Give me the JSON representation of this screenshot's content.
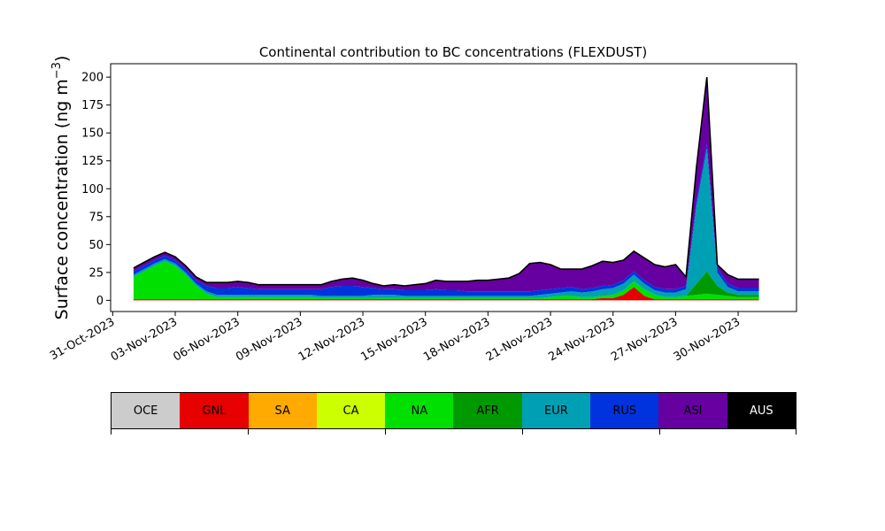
{
  "chart_data": {
    "type": "area",
    "title": "Continental contribution to BC concentrations (FLEXDUST)",
    "ylabel_main": "Surface concentration (ng m",
    "ylabel_exp": "−3",
    "ylabel_close": ")",
    "xlabel": "",
    "ylim": [
      -10,
      212
    ],
    "xlim_days": [
      -1.1,
      31.8
    ],
    "yticks": [
      0,
      25,
      50,
      75,
      100,
      125,
      150,
      175,
      200
    ],
    "xticks": [
      "31-Oct-2023",
      "03-Nov-2023",
      "06-Nov-2023",
      "09-Nov-2023",
      "12-Nov-2023",
      "15-Nov-2023",
      "18-Nov-2023",
      "21-Nov-2023",
      "24-Nov-2023",
      "27-Nov-2023",
      "30-Nov-2023"
    ],
    "x": [
      "2023-11-01",
      "2023-11-01T12",
      "2023-11-02",
      "2023-11-02T12",
      "2023-11-03",
      "2023-11-03T12",
      "2023-11-04",
      "2023-11-04T12",
      "2023-11-05",
      "2023-11-05T12",
      "2023-11-06",
      "2023-11-06T12",
      "2023-11-07",
      "2023-11-07T12",
      "2023-11-08",
      "2023-11-08T12",
      "2023-11-09",
      "2023-11-09T12",
      "2023-11-10",
      "2023-11-10T12",
      "2023-11-11",
      "2023-11-11T12",
      "2023-11-12",
      "2023-11-12T12",
      "2023-11-13",
      "2023-11-13T12",
      "2023-11-14",
      "2023-11-14T12",
      "2023-11-15",
      "2023-11-15T12",
      "2023-11-16",
      "2023-11-16T12",
      "2023-11-17",
      "2023-11-17T12",
      "2023-11-18",
      "2023-11-18T12",
      "2023-11-19",
      "2023-11-19T12",
      "2023-11-20",
      "2023-11-20T12",
      "2023-11-21",
      "2023-11-21T12",
      "2023-11-22",
      "2023-11-22T12",
      "2023-11-23",
      "2023-11-23T12",
      "2023-11-24",
      "2023-11-24T12",
      "2023-11-25",
      "2023-11-25T12",
      "2023-11-26",
      "2023-11-26T12",
      "2023-11-27",
      "2023-11-27T12",
      "2023-11-28",
      "2023-11-28T12",
      "2023-11-29",
      "2023-11-29T12",
      "2023-11-30",
      "2023-11-30T12",
      "2023-12-01"
    ],
    "series": [
      {
        "name": "OCE",
        "color": "#cccccc",
        "values": [
          0,
          0,
          0,
          0,
          0,
          0,
          0,
          0,
          0,
          0,
          0,
          0,
          0,
          0,
          0,
          0,
          0,
          0,
          0,
          0,
          0,
          0,
          0,
          0,
          0,
          0,
          0,
          0,
          0,
          0,
          0,
          0,
          0,
          0,
          0,
          0,
          0,
          0,
          0,
          0,
          0,
          0,
          0,
          0,
          0,
          0,
          0,
          0,
          0,
          0,
          0,
          0,
          0,
          0,
          0,
          0,
          0,
          0,
          0,
          0,
          0
        ]
      },
      {
        "name": "GNL",
        "color": "#e60000",
        "values": [
          1,
          1,
          1,
          1,
          1,
          1,
          1,
          1,
          1,
          1,
          1,
          1,
          1,
          1,
          1,
          1,
          1,
          1,
          1,
          1,
          1,
          1,
          1,
          1,
          1,
          1,
          1,
          1,
          1,
          1,
          1,
          1,
          1,
          1,
          1,
          1,
          1,
          1,
          1,
          1,
          1,
          1,
          1,
          1,
          1,
          2,
          2,
          5,
          12,
          4,
          1,
          1,
          1,
          1,
          1,
          1,
          1,
          1,
          1,
          1,
          1
        ]
      },
      {
        "name": "SA",
        "color": "#ffaa00",
        "values": [
          0,
          0,
          0,
          0,
          0,
          0,
          0,
          0,
          0,
          0,
          0,
          0,
          0,
          0,
          0,
          0,
          0,
          0,
          0,
          0,
          0,
          0,
          0,
          0,
          0,
          0,
          0,
          0,
          0,
          0,
          0,
          0,
          0,
          0,
          0,
          0,
          0,
          0,
          0,
          0,
          0,
          0,
          0,
          0,
          0,
          0,
          0,
          0,
          0,
          0,
          0,
          0,
          0,
          0,
          0,
          0,
          0,
          0,
          0,
          0,
          0
        ]
      },
      {
        "name": "CA",
        "color": "#ccff00",
        "values": [
          0,
          0,
          0,
          0,
          0,
          0,
          0,
          0,
          0,
          0,
          0,
          0,
          0,
          0,
          0,
          0,
          0,
          0,
          0,
          0,
          0,
          0,
          0,
          0,
          0,
          0,
          0,
          0,
          0,
          0,
          0,
          0,
          0,
          0,
          0,
          0,
          0,
          0,
          0,
          0,
          0,
          0,
          0,
          0,
          0,
          0,
          0,
          0,
          0,
          0,
          0,
          0,
          0,
          0,
          0,
          0,
          0,
          0,
          0,
          0,
          0
        ]
      },
      {
        "name": "NA",
        "color": "#00e000",
        "values": [
          20,
          25,
          30,
          34,
          30,
          22,
          12,
          5,
          2,
          2,
          2,
          2,
          2,
          2,
          2,
          2,
          2,
          2,
          1,
          1,
          1,
          1,
          1,
          1,
          1,
          1,
          1,
          1,
          1,
          1,
          1,
          1,
          1,
          1,
          1,
          1,
          1,
          1,
          1,
          1,
          2,
          3,
          3,
          2,
          2,
          2,
          3,
          4,
          5,
          6,
          4,
          2,
          2,
          3,
          4,
          5,
          4,
          3,
          2,
          2,
          2
        ]
      },
      {
        "name": "AFR",
        "color": "#009900",
        "values": [
          0,
          0,
          0,
          0,
          0,
          0,
          0,
          0,
          0,
          0,
          0,
          0,
          0,
          0,
          0,
          0,
          0,
          0,
          0,
          0,
          0,
          0,
          0,
          0,
          0,
          0,
          0,
          0,
          0,
          0,
          0,
          0,
          0,
          0,
          0,
          0,
          0,
          0,
          0,
          0,
          0,
          0,
          0,
          0,
          0,
          0,
          0,
          0,
          0,
          0,
          0,
          0,
          0,
          0,
          10,
          20,
          8,
          3,
          2,
          2,
          2
        ]
      },
      {
        "name": "EUR",
        "color": "#00a0b4",
        "values": [
          2,
          2,
          2,
          2,
          2,
          2,
          2,
          2,
          2,
          2,
          2,
          2,
          2,
          2,
          2,
          2,
          2,
          2,
          2,
          2,
          2,
          2,
          2,
          3,
          3,
          3,
          2,
          2,
          2,
          2,
          2,
          2,
          2,
          2,
          2,
          2,
          2,
          2,
          2,
          3,
          3,
          3,
          4,
          4,
          5,
          6,
          6,
          6,
          6,
          5,
          4,
          4,
          4,
          6,
          70,
          110,
          12,
          5,
          3,
          3,
          3
        ]
      },
      {
        "name": "RUS",
        "color": "#0033dd",
        "values": [
          3,
          3,
          3,
          3,
          3,
          3,
          3,
          5,
          6,
          6,
          7,
          6,
          5,
          5,
          5,
          5,
          5,
          5,
          6,
          8,
          9,
          9,
          8,
          6,
          5,
          5,
          5,
          5,
          5,
          6,
          5,
          5,
          4,
          4,
          4,
          4,
          4,
          4,
          4,
          4,
          4,
          4,
          4,
          3,
          3,
          3,
          3,
          3,
          3,
          3,
          3,
          3,
          3,
          3,
          4,
          4,
          4,
          3,
          3,
          3,
          3
        ]
      },
      {
        "name": "ASI",
        "color": "#6600a0",
        "values": [
          3,
          3,
          3,
          3,
          3,
          3,
          3,
          3,
          5,
          5,
          5,
          5,
          4,
          4,
          4,
          4,
          4,
          4,
          4,
          5,
          6,
          7,
          6,
          4,
          3,
          4,
          4,
          5,
          6,
          8,
          8,
          8,
          9,
          10,
          10,
          11,
          12,
          16,
          25,
          25,
          22,
          17,
          16,
          18,
          20,
          22,
          20,
          18,
          18,
          20,
          20,
          20,
          22,
          8,
          30,
          60,
          3,
          8,
          8,
          8,
          8
        ]
      },
      {
        "name": "AUS",
        "color": "#000000",
        "values": [
          0,
          0,
          0,
          0,
          0,
          0,
          0,
          0,
          0,
          0,
          0,
          0,
          0,
          0,
          0,
          0,
          0,
          0,
          0,
          0,
          0,
          0,
          0,
          0,
          0,
          0,
          0,
          0,
          0,
          0,
          0,
          0,
          0,
          0,
          0,
          0,
          0,
          0,
          0,
          0,
          0,
          0,
          0,
          0,
          0,
          0,
          0,
          0,
          0,
          0,
          0,
          0,
          0,
          0,
          0,
          0,
          0,
          0,
          0,
          0,
          0
        ]
      }
    ],
    "legend_labels": [
      "OCE",
      "GNL",
      "SA",
      "CA",
      "NA",
      "AFR",
      "EUR",
      "RUS",
      "ASI",
      "AUS"
    ],
    "legend_text_colors": [
      "#000000",
      "#000000",
      "#000000",
      "#000000",
      "#000000",
      "#000000",
      "#000000",
      "#000000",
      "#000000",
      "#ffffff"
    ],
    "grid": false,
    "legend_placement": "bottom"
  }
}
